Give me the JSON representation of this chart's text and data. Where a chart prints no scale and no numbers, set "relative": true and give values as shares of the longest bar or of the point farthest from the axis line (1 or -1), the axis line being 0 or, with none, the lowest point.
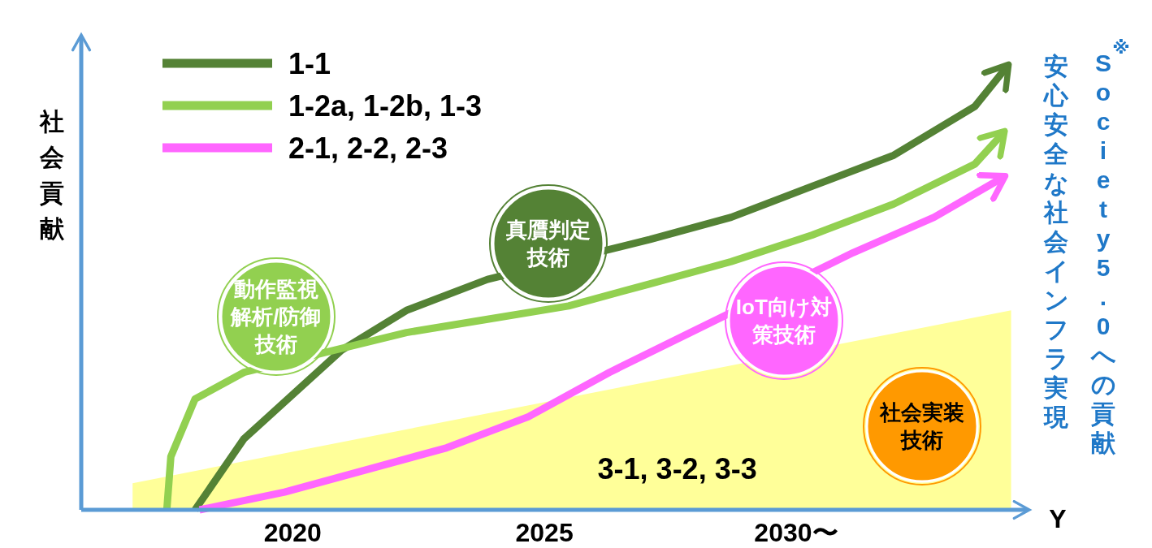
{
  "chart_data": {
    "type": "line",
    "relative": true,
    "xlabel": "Y",
    "ylabel": "社会貢献",
    "legend": "top left",
    "grid": false,
    "xlim": [
      2015.8,
      2034.6
    ],
    "xticks": [
      2020,
      2025,
      {
        "value": 2030,
        "label": "2030〜"
      }
    ],
    "series": [
      {
        "type": "area",
        "name": "3-1, 3-2, 3-3",
        "color": "#ffff99",
        "x": [
          2016.82,
          2034.27
        ],
        "values": [
          0.06,
          0.45
        ]
      },
      {
        "name": "1-1",
        "color": "#548235",
        "x": [
          2018.06,
          2019.03,
          2020.97,
          2022.26,
          2023.87,
          2027.1,
          2028.71,
          2030.32,
          2031.94,
          2033.55,
          2034.19
        ],
        "values": [
          0,
          0.16,
          0.36,
          0.45,
          0.52,
          0.61,
          0.66,
          0.73,
          0.8,
          0.91,
          1.0
        ]
      },
      {
        "name": "1-2a, 1-2b, 1-3",
        "color": "#92d050",
        "x": [
          2017.5,
          2017.58,
          2018.06,
          2019.03,
          2022.26,
          2023.87,
          2025.48,
          2027.1,
          2028.71,
          2030.32,
          2031.94,
          2033.55,
          2034.11
        ],
        "values": [
          0,
          0.12,
          0.25,
          0.31,
          0.4,
          0.43,
          0.46,
          0.51,
          0.56,
          0.62,
          0.69,
          0.78,
          0.85
        ]
      },
      {
        "name": "2-1, 2-2, 2-3",
        "color": "#ff66ff",
        "x": [
          2018.15,
          2019.84,
          2021.45,
          2023.06,
          2024.68,
          2026.29,
          2027.9,
          2031.13,
          2032.74,
          2034.11
        ],
        "values": [
          0,
          0.04,
          0.09,
          0.14,
          0.21,
          0.31,
          0.4,
          0.58,
          0.66,
          0.75
        ]
      }
    ],
    "annotations": [
      "動作監視解析/防御技術",
      "真贋判定技術",
      "IoT向け対策技術",
      "社会実装技術",
      "安心安全な社会インフラ実現",
      "S$^{※}$ociety5.0への貢献"
    ]
  }
}
